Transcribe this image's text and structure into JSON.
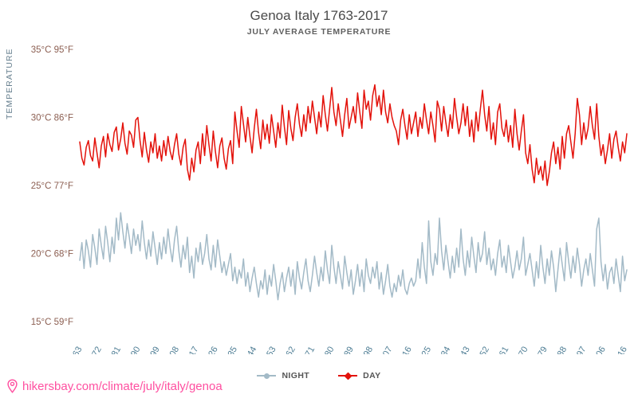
{
  "title": "Genoa Italy 1763-2017",
  "subtitle": "JULY AVERAGE TEMPERATURE",
  "y_axis_title": "TEMPERATURE",
  "footer": {
    "url": "hikersbay.com/climate/july/italy/genoa"
  },
  "colors": {
    "day": "#e3120b",
    "night": "#a3bac7",
    "title": "#4a4a4a",
    "subtitle": "#606060",
    "y_tick": "#8c5f52",
    "x_tick": "#4f7e95",
    "link_pink": "#ff4fa0"
  },
  "legend": [
    {
      "label": "NIGHT",
      "color": "#a3bac7",
      "marker": "dot"
    },
    {
      "label": "DAY",
      "color": "#e3120b",
      "marker": "diamond"
    }
  ],
  "chart_data": {
    "type": "line",
    "title": "Genoa Italy 1763-2017",
    "subtitle": "JULY AVERAGE TEMPERATURE",
    "ylabel": "TEMPERATURE",
    "x_start": 1763,
    "x_end": 2017,
    "ylim": [
      15,
      35
    ],
    "grid": false,
    "legend_position": "bottom",
    "x_ticks": [
      1763,
      1772,
      1781,
      1790,
      1799,
      1808,
      1817,
      1826,
      1835,
      1844,
      1853,
      1862,
      1871,
      1880,
      1889,
      1898,
      1907,
      1916,
      1925,
      1934,
      1943,
      1952,
      1961,
      1970,
      1979,
      1988,
      1997,
      2006,
      2016
    ],
    "y_ticks": [
      {
        "c": "35°C",
        "f": "95°F",
        "value": 35
      },
      {
        "c": "30°C",
        "f": "86°F",
        "value": 30
      },
      {
        "c": "25°C",
        "f": "77°F",
        "value": 25
      },
      {
        "c": "20°C",
        "f": "68°F",
        "value": 20
      },
      {
        "c": "15°C",
        "f": "59°F",
        "value": 15
      }
    ],
    "series": [
      {
        "name": "NIGHT",
        "color": "#a3bac7",
        "values": [
          19.5,
          20.8,
          18.9,
          21.0,
          20.2,
          19.0,
          21.4,
          20.4,
          19.2,
          21.8,
          20.6,
          19.6,
          22.0,
          20.8,
          19.4,
          21.2,
          20.0,
          22.6,
          21.0,
          23.0,
          21.6,
          20.4,
          22.2,
          21.2,
          20.0,
          21.8,
          20.6,
          21.4,
          20.2,
          22.4,
          20.8,
          19.6,
          21.0,
          19.8,
          21.6,
          20.4,
          19.2,
          20.8,
          19.6,
          21.2,
          20.0,
          21.8,
          20.4,
          19.4,
          21.0,
          22.0,
          20.2,
          19.0,
          20.6,
          19.6,
          21.2,
          18.6,
          19.8,
          18.2,
          20.4,
          19.4,
          20.8,
          19.2,
          20.0,
          21.4,
          19.6,
          18.8,
          20.6,
          19.0,
          21.0,
          19.8,
          18.6,
          19.4,
          18.4,
          19.2,
          20.0,
          18.0,
          19.0,
          17.8,
          18.8,
          18.2,
          19.6,
          17.6,
          18.6,
          17.2,
          18.2,
          19.0,
          17.8,
          16.8,
          18.0,
          17.4,
          18.8,
          17.0,
          18.4,
          17.6,
          19.2,
          18.0,
          16.6,
          17.8,
          18.6,
          17.2,
          18.2,
          19.0,
          17.6,
          18.8,
          17.0,
          19.4,
          18.2,
          17.4,
          18.6,
          19.6,
          18.0,
          17.2,
          18.4,
          19.8,
          18.6,
          17.6,
          19.0,
          18.0,
          20.2,
          18.8,
          17.8,
          20.6,
          19.0,
          17.8,
          19.4,
          18.4,
          17.4,
          19.8,
          18.6,
          17.6,
          18.8,
          17.0,
          18.0,
          19.2,
          17.6,
          18.8,
          17.2,
          19.6,
          18.4,
          17.8,
          19.0,
          18.2,
          19.4,
          17.4,
          18.6,
          17.0,
          18.0,
          19.2,
          17.6,
          16.8,
          17.8,
          17.2,
          18.4,
          17.6,
          18.8,
          17.4,
          17.0,
          17.8,
          18.2,
          17.6,
          18.0,
          19.6,
          18.2,
          20.8,
          19.0,
          17.8,
          22.4,
          19.4,
          18.4,
          20.0,
          19.2,
          22.6,
          20.2,
          18.8,
          20.6,
          19.4,
          18.2,
          19.8,
          18.6,
          20.4,
          19.0,
          21.8,
          19.6,
          18.4,
          20.2,
          19.0,
          21.2,
          19.8,
          18.6,
          20.8,
          19.4,
          20.0,
          21.6,
          19.2,
          20.4,
          18.8,
          19.6,
          18.4,
          20.0,
          21.0,
          19.0,
          19.8,
          18.6,
          20.6,
          19.4,
          18.2,
          19.0,
          20.2,
          18.8,
          19.6,
          21.2,
          18.4,
          19.2,
          20.0,
          18.8,
          17.6,
          19.4,
          18.2,
          20.6,
          19.0,
          17.8,
          19.6,
          18.4,
          20.2,
          19.0,
          17.2,
          18.8,
          20.4,
          19.2,
          18.0,
          20.8,
          19.4,
          18.2,
          19.8,
          18.6,
          20.4,
          19.2,
          17.6,
          18.8,
          19.6,
          18.4,
          20.0,
          18.8,
          17.6,
          21.8,
          22.6,
          19.4,
          18.0,
          19.2,
          17.4,
          18.6,
          19.0,
          17.8,
          19.6,
          18.4,
          17.2,
          19.8,
          18.0,
          18.8
        ]
      },
      {
        "name": "DAY",
        "color": "#e3120b",
        "values": [
          28.2,
          27.0,
          26.5,
          27.8,
          28.3,
          27.2,
          26.8,
          28.5,
          27.4,
          26.3,
          27.9,
          28.6,
          27.1,
          28.8,
          28.0,
          27.5,
          28.9,
          29.3,
          27.6,
          28.4,
          29.6,
          28.1,
          27.3,
          29.0,
          28.7,
          27.8,
          29.8,
          30.0,
          28.3,
          27.1,
          28.9,
          27.6,
          26.7,
          28.2,
          27.4,
          28.8,
          27.0,
          27.9,
          26.8,
          28.3,
          27.2,
          28.6,
          27.5,
          26.9,
          28.0,
          28.8,
          27.3,
          26.5,
          27.8,
          28.4,
          26.2,
          25.4,
          27.0,
          26.0,
          27.6,
          28.2,
          26.6,
          28.8,
          27.2,
          29.4,
          28.0,
          26.8,
          29.0,
          27.5,
          26.3,
          27.9,
          28.5,
          27.0,
          26.2,
          27.7,
          28.3,
          26.6,
          30.4,
          29.0,
          27.8,
          30.8,
          29.5,
          28.2,
          30.0,
          28.6,
          27.4,
          29.2,
          30.6,
          28.9,
          27.7,
          29.8,
          28.4,
          29.5,
          28.1,
          30.2,
          29.0,
          27.8,
          29.6,
          28.5,
          30.9,
          29.3,
          28.0,
          30.5,
          29.2,
          28.3,
          30.0,
          31.0,
          29.5,
          28.6,
          30.2,
          29.0,
          30.8,
          29.6,
          31.2,
          30.0,
          28.8,
          30.4,
          29.3,
          31.6,
          30.2,
          29.0,
          30.6,
          32.2,
          30.4,
          29.4,
          31.0,
          29.8,
          28.6,
          30.2,
          31.4,
          29.2,
          30.0,
          30.8,
          29.6,
          31.8,
          30.4,
          29.2,
          32.0,
          30.6,
          31.2,
          29.8,
          31.6,
          32.4,
          30.8,
          31.6,
          30.2,
          32.0,
          30.4,
          29.6,
          31.0,
          30.0,
          29.4,
          29.0,
          28.0,
          29.8,
          30.6,
          29.4,
          28.4,
          30.2,
          28.8,
          29.6,
          30.4,
          28.6,
          30.0,
          29.2,
          31.0,
          29.8,
          28.8,
          30.4,
          29.4,
          28.2,
          31.2,
          30.6,
          29.0,
          30.8,
          29.6,
          28.6,
          30.2,
          29.2,
          31.4,
          30.0,
          28.8,
          29.6,
          31.0,
          29.4,
          30.8,
          28.6,
          29.8,
          28.2,
          30.4,
          29.0,
          30.6,
          32.0,
          30.2,
          29.0,
          30.8,
          28.4,
          29.6,
          28.0,
          30.4,
          31.0,
          29.2,
          28.6,
          29.8,
          28.2,
          29.4,
          27.8,
          30.6,
          28.8,
          27.6,
          29.0,
          30.2,
          27.4,
          26.6,
          28.0,
          26.2,
          25.2,
          27.0,
          25.8,
          26.4,
          25.4,
          26.8,
          25.0,
          26.0,
          27.4,
          28.2,
          26.6,
          27.8,
          26.2,
          28.6,
          27.0,
          28.8,
          29.4,
          28.2,
          27.0,
          28.8,
          31.4,
          30.2,
          28.0,
          29.6,
          28.4,
          29.2,
          30.8,
          29.4,
          28.4,
          31.0,
          28.6,
          27.2,
          28.0,
          26.6,
          27.6,
          28.8,
          27.0,
          28.4,
          29.0,
          27.8,
          26.8,
          28.2,
          27.4,
          28.8
        ]
      }
    ]
  }
}
